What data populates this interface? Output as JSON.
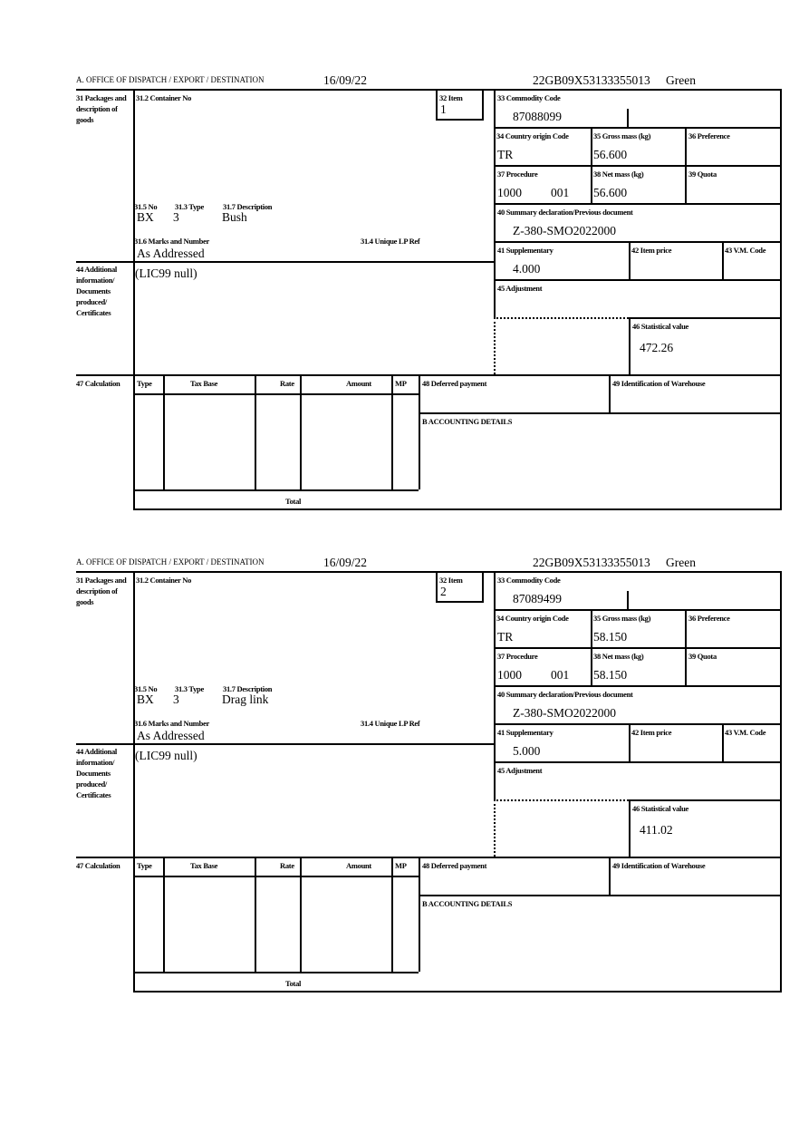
{
  "labels": {
    "office": "A. OFFICE OF DISPATCH / EXPORT / DESTINATION",
    "l31": "31 Packages and description of goods",
    "l31_2": "31.2 Container No",
    "l32": "32 Item",
    "l31_5": "31.5 No",
    "l31_3": "31.3 Type",
    "l31_7": "31.7 Description",
    "l31_6": "31.6 Marks and Number",
    "l31_4": "31.4 Unique LP Ref",
    "l33": "33 Commodity Code",
    "l34": "34 Country origin Code",
    "l35": "35 Gross mass (kg)",
    "l36": "36 Preference",
    "l37": "37 Procedure",
    "l38": "38 Net mass (kg)",
    "l39": "39 Quota",
    "l40": "40 Summary declaration/Previous document",
    "l41": "41 Supplementary",
    "l42": "42 Item price",
    "l43": "43 V.M. Code",
    "l44": "44 Additional information/ Documents produced/ Certificates",
    "l45": "45 Adjustment",
    "l46": "46 Statistical value",
    "l47": "47 Calculation",
    "type": "Type",
    "tax_base": "Tax Base",
    "rate": "Rate",
    "amount": "Amount",
    "mp": "MP",
    "total": "Total",
    "l48": "48 Deferred payment",
    "l49": "49 Identification of Warehouse",
    "accounting": "B ACCOUNTING DETAILS"
  },
  "items": [
    {
      "date": "16/09/22",
      "reference": "22GB09X53133355013",
      "route": "Green",
      "item_no": "1",
      "packages_no": "BX",
      "packages_type": "3",
      "description": "Bush",
      "marks": "As Addressed",
      "commodity_code": "87088099",
      "country_origin": "TR",
      "gross_mass": "56.600",
      "procedure": "1000",
      "procedure_add": "001",
      "net_mass": "56.600",
      "previous_document": "Z-380-SMO2022000",
      "supplementary": "4.000",
      "additional_info": "(LIC99 null)",
      "statistical_value": "472.26"
    },
    {
      "date": "16/09/22",
      "reference": "22GB09X53133355013",
      "route": "Green",
      "item_no": "2",
      "packages_no": "BX",
      "packages_type": "3",
      "description": "Drag link",
      "marks": "As Addressed",
      "commodity_code": "87089499",
      "country_origin": "TR",
      "gross_mass": "58.150",
      "procedure": "1000",
      "procedure_add": "001",
      "net_mass": "58.150",
      "previous_document": "Z-380-SMO2022000",
      "supplementary": "5.000",
      "additional_info": "(LIC99 null)",
      "statistical_value": "411.02"
    }
  ]
}
